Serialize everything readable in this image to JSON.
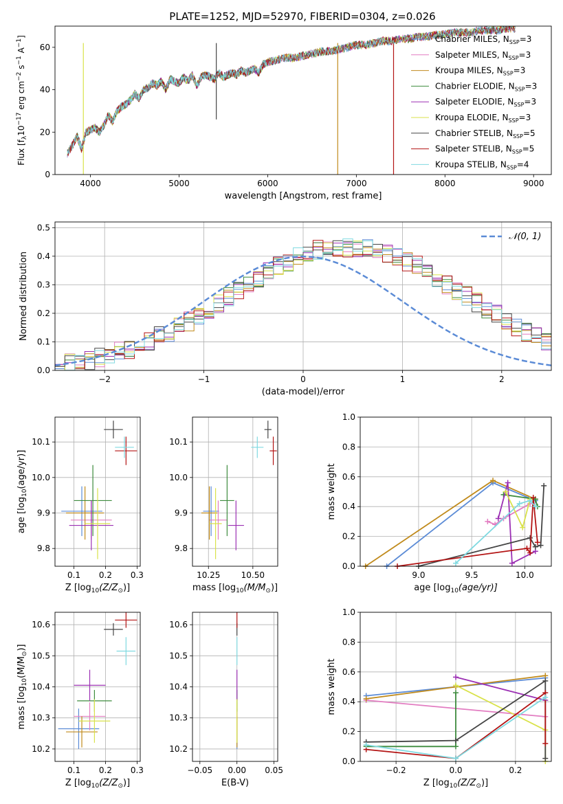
{
  "figure": {
    "title": "PLATE=1252, MJD=52970, FIBERID=0304, z=0.026"
  },
  "colors": [
    "#5b8bd6",
    "#e27cc1",
    "#c08a1b",
    "#3d8b3d",
    "#9b2fb3",
    "#d9e24a",
    "#444444",
    "#b31313",
    "#7fd9e0"
  ],
  "chart_data": [
    {
      "id": "spectrum",
      "type": "line",
      "xlabel": "wavelength [Angstrom, rest frame]",
      "ylabel_main": "Flux [f",
      "ylabel_sub": "λ",
      "ylabel_mid": "10",
      "ylabel_sup1": "−17",
      "ylabel_rest": " erg cm",
      "ylabel_sup2": "−2",
      "ylabel_rest2": " s",
      "ylabel_sup3": "−1",
      "ylabel_rest3": " A",
      "ylabel_sup4": "−1",
      "ylabel_end": "]",
      "xlim": [
        3600,
        9200
      ],
      "ylim": [
        0,
        70
      ],
      "xticks": [
        4000,
        5000,
        6000,
        7000,
        8000,
        9000
      ],
      "yticks": [
        0,
        20,
        40,
        60
      ],
      "x": [
        3740,
        3800,
        3850,
        3900,
        3950,
        4000,
        4050,
        4100,
        4150,
        4200,
        4250,
        4300,
        4350,
        4400,
        4450,
        4500,
        4550,
        4600,
        4650,
        4700,
        4750,
        4800,
        4850,
        4900,
        4950,
        5000,
        5050,
        5100,
        5150,
        5200,
        5250,
        5300,
        5350,
        5400,
        5450,
        5500,
        5550,
        5600,
        5650,
        5700,
        5750,
        5800,
        5850,
        5900,
        5950,
        6000,
        6100,
        6200,
        6300,
        6400,
        6500,
        6600,
        6700,
        6800,
        6900,
        7000,
        7100,
        7200,
        7300,
        7400,
        7500,
        7600,
        7700,
        7800,
        7900,
        8000,
        8100,
        8200,
        8300,
        8400,
        8500,
        8600,
        8700,
        8800
      ],
      "y": [
        10,
        14,
        18,
        12,
        20,
        21,
        22,
        20,
        23,
        28,
        25,
        30,
        32,
        33,
        35,
        38,
        36,
        40,
        41,
        43,
        42,
        44,
        40,
        45,
        44,
        43,
        46,
        44,
        47,
        42,
        46,
        47,
        46,
        45,
        48,
        46,
        47,
        48,
        47,
        49,
        48,
        49,
        50,
        48,
        52,
        53,
        54,
        55,
        55,
        56,
        57,
        58,
        58,
        59,
        60,
        61,
        61,
        62,
        63,
        63,
        64,
        64,
        65,
        65,
        66,
        66,
        67,
        67,
        67,
        68,
        68,
        68,
        69,
        69
      ],
      "series": [
        {
          "name_main": "Chabrier MILES, N",
          "name_sub": "SSP",
          "name_end": "=3",
          "dip": null
        },
        {
          "name_main": "Salpeter MILES, N",
          "name_sub": "SSP",
          "name_end": "=3",
          "dip": null
        },
        {
          "name_main": "Kroupa MILES, N",
          "name_sub": "SSP",
          "name_end": "=3",
          "dip": 6790
        },
        {
          "name_main": "Chabrier ELODIE, N",
          "name_sub": "SSP",
          "name_end": "=3",
          "dip": null
        },
        {
          "name_main": "Salpeter ELODIE, N",
          "name_sub": "SSP",
          "name_end": "=3",
          "dip": null
        },
        {
          "name_main": "Kroupa ELODIE, N",
          "name_sub": "SSP",
          "name_end": "=3",
          "dip": 3920
        },
        {
          "name_main": "Chabrier STELIB, N",
          "name_sub": "SSP",
          "name_end": "=5",
          "dip": 5420
        },
        {
          "name_main": "Salpeter STELIB, N",
          "name_sub": "SSP",
          "name_end": "=5",
          "dip": 7420
        },
        {
          "name_main": "Kroupa STELIB, N",
          "name_sub": "SSP",
          "name_end": "=4",
          "dip": null
        }
      ]
    },
    {
      "id": "residuals",
      "type": "histogram",
      "xlabel": "(data-model)/error",
      "ylabel": "Normed distribution",
      "xlim": [
        -2.5,
        2.5
      ],
      "ylim": [
        0,
        0.52
      ],
      "xticks": [
        -2,
        -1,
        0,
        1,
        2
      ],
      "xticklabels": [
        "−2",
        "−1",
        "0",
        "1",
        "2"
      ],
      "yticks": [
        0.0,
        0.1,
        0.2,
        0.3,
        0.4,
        0.5
      ],
      "yticklabels": [
        "0.0",
        "0.1",
        "0.2",
        "0.3",
        "0.4",
        "0.5"
      ],
      "bin_width": 0.1,
      "legend": "𝒩(0, 1)",
      "bin_edges_start": -2.5,
      "reference_values": [
        0.018,
        0.022,
        0.028,
        0.034,
        0.042,
        0.05,
        0.06,
        0.07,
        0.082,
        0.095,
        0.11,
        0.125,
        0.14,
        0.16,
        0.18,
        0.2,
        0.22,
        0.24,
        0.26,
        0.28,
        0.3,
        0.32,
        0.34,
        0.355,
        0.37,
        0.38,
        0.39,
        0.395,
        0.4,
        0.4,
        0.4,
        0.395,
        0.39,
        0.38,
        0.37,
        0.355,
        0.34,
        0.32,
        0.3,
        0.28,
        0.26,
        0.24,
        0.22,
        0.2,
        0.18,
        0.16,
        0.14,
        0.125,
        0.11,
        0.095
      ]
    },
    {
      "id": "age-vs-Z",
      "type": "scatter",
      "xlabel": "Z [log",
      "xlabel_sub": "10",
      "xlabel_end": "(Z/Z",
      "xlabel_sub2": "⊙",
      "xlabel_close": ")]",
      "ylabel": "age  [log",
      "ylabel_sub": "10",
      "ylabel_end": "(age/yr)]",
      "xlim": [
        0.04,
        0.31
      ],
      "ylim": [
        9.75,
        10.17
      ],
      "xticks": [
        0.1,
        0.2,
        0.3
      ],
      "xticklabels": [
        "0.1",
        "0.2",
        "0.3"
      ],
      "yticks": [
        9.8,
        9.9,
        10.0,
        10.1
      ],
      "yticklabels": [
        "9.8",
        "9.9",
        "10.0",
        "10.1"
      ],
      "points": [
        {
          "x": 0.125,
          "y": 9.905,
          "xerr": 0.065,
          "yerr": 0.07
        },
        {
          "x": 0.155,
          "y": 9.88,
          "xerr": 0.065,
          "yerr": 0.055
        },
        {
          "x": 0.135,
          "y": 9.9,
          "xerr": 0.06,
          "yerr": 0.075
        },
        {
          "x": 0.16,
          "y": 9.935,
          "xerr": 0.06,
          "yerr": 0.1
        },
        {
          "x": 0.155,
          "y": 9.865,
          "xerr": 0.07,
          "yerr": 0.07
        },
        {
          "x": 0.175,
          "y": 9.87,
          "xerr": 0.04,
          "yerr": 0.1
        },
        {
          "x": 0.225,
          "y": 10.135,
          "xerr": 0.03,
          "yerr": 0.025
        },
        {
          "x": 0.265,
          "y": 10.075,
          "xerr": 0.035,
          "yerr": 0.04
        },
        {
          "x": 0.26,
          "y": 10.085,
          "xerr": 0.03,
          "yerr": 0.03
        }
      ]
    },
    {
      "id": "age-vs-mass",
      "type": "scatter",
      "xlabel": "mass [log",
      "xlabel_sub": "10",
      "xlabel_end": "(M/M",
      "xlabel_sub2": "⊙",
      "xlabel_close": ")]",
      "xlim": [
        10.16,
        10.64
      ],
      "ylim": [
        9.75,
        10.17
      ],
      "xticks": [
        10.25,
        10.5
      ],
      "xticklabels": [
        "10.25",
        "10.50"
      ],
      "yticks": [
        9.8,
        9.9,
        10.0,
        10.1
      ],
      "yticklabels": [
        "9.8",
        "9.9",
        "10.0",
        "10.1"
      ],
      "points": [
        {
          "x": 10.265,
          "y": 9.905,
          "xerr": 0.045,
          "yerr": 0.07
        },
        {
          "x": 10.305,
          "y": 9.88,
          "xerr": 0.05,
          "yerr": 0.055
        },
        {
          "x": 10.255,
          "y": 9.9,
          "xerr": 0.045,
          "yerr": 0.075
        },
        {
          "x": 10.355,
          "y": 9.935,
          "xerr": 0.04,
          "yerr": 0.1
        },
        {
          "x": 10.405,
          "y": 9.865,
          "xerr": 0.045,
          "yerr": 0.07
        },
        {
          "x": 10.29,
          "y": 9.87,
          "xerr": 0.035,
          "yerr": 0.1
        },
        {
          "x": 10.585,
          "y": 10.135,
          "xerr": 0.02,
          "yerr": 0.025
        },
        {
          "x": 10.615,
          "y": 10.075,
          "xerr": 0.02,
          "yerr": 0.04
        },
        {
          "x": 10.525,
          "y": 10.085,
          "xerr": 0.035,
          "yerr": 0.03
        }
      ]
    },
    {
      "id": "mass-weight-vs-age",
      "type": "line",
      "xlabel": "age  [log",
      "xlabel_sub": "10",
      "xlabel_end": "(age/yr)]",
      "ylabel": "mass weight",
      "xlim": [
        8.45,
        10.25
      ],
      "ylim": [
        0,
        1.0
      ],
      "xticks": [
        9.0,
        9.5,
        10.0
      ],
      "xticklabels": [
        "9.0",
        "9.5",
        "10.0"
      ],
      "yticks": [
        0,
        0.2,
        0.4,
        0.6,
        0.8,
        1.0
      ],
      "yticklabels": [
        "0.0",
        "0.2",
        "0.4",
        "0.6",
        "0.8",
        "1.0"
      ],
      "series": [
        {
          "x": [
            8.7,
            9.7,
            10.1
          ],
          "y": [
            0.0,
            0.56,
            0.44
          ]
        },
        {
          "x": [
            9.65,
            9.72,
            9.8,
            10.05
          ],
          "y": [
            0.3,
            0.28,
            0.32,
            0.42
          ]
        },
        {
          "x": [
            8.5,
            9.7,
            10.1
          ],
          "y": [
            0.0,
            0.575,
            0.45
          ]
        },
        {
          "x": [
            9.8,
            10.1,
            10.12
          ],
          "y": [
            0.48,
            0.45,
            0.4
          ]
        },
        {
          "x": [
            9.75,
            9.84,
            9.88,
            10.1
          ],
          "y": [
            0.32,
            0.56,
            0.02,
            0.1
          ]
        },
        {
          "x": [
            9.82,
            9.98,
            10.05
          ],
          "y": [
            0.5,
            0.26,
            0.45
          ]
        },
        {
          "x": [
            9.0,
            10.05,
            10.1,
            10.15,
            10.18
          ],
          "y": [
            0.0,
            0.19,
            0.13,
            0.14,
            0.54
          ]
        },
        {
          "x": [
            8.8,
            10.02,
            10.05,
            10.08,
            10.12
          ],
          "y": [
            0.0,
            0.12,
            0.09,
            0.46,
            0.16
          ]
        },
        {
          "x": [
            9.35,
            9.95,
            10.05,
            10.1
          ],
          "y": [
            0.02,
            0.42,
            0.44,
            0.4
          ]
        }
      ]
    },
    {
      "id": "mass-vs-Z",
      "type": "scatter",
      "xlabel": "Z [log",
      "xlabel_sub": "10",
      "xlabel_end": "(Z/Z",
      "xlabel_sub2": "⊙",
      "xlabel_close": ")]",
      "ylabel": "mass [log",
      "ylabel_sub": "10",
      "ylabel_end": "(M/M",
      "ylabel_sub2": "⊙",
      "ylabel_close": ")]",
      "xlim": [
        0.04,
        0.31
      ],
      "ylim": [
        10.16,
        10.64
      ],
      "xticks": [
        0.1,
        0.2,
        0.3
      ],
      "xticklabels": [
        "0.1",
        "0.2",
        "0.3"
      ],
      "yticks": [
        10.2,
        10.3,
        10.4,
        10.5,
        10.6
      ],
      "yticklabels": [
        "10.2",
        "10.3",
        "10.4",
        "10.5",
        "10.6"
      ],
      "points": [
        {
          "x": 0.115,
          "y": 10.265,
          "xerr": 0.065,
          "yerr": 0.065
        },
        {
          "x": 0.15,
          "y": 10.305,
          "xerr": 0.05,
          "yerr": 0.045
        },
        {
          "x": 0.125,
          "y": 10.255,
          "xerr": 0.05,
          "yerr": 0.05
        },
        {
          "x": 0.165,
          "y": 10.355,
          "xerr": 0.055,
          "yerr": 0.035
        },
        {
          "x": 0.15,
          "y": 10.405,
          "xerr": 0.05,
          "yerr": 0.05
        },
        {
          "x": 0.165,
          "y": 10.29,
          "xerr": 0.05,
          "yerr": 0.07
        },
        {
          "x": 0.225,
          "y": 10.585,
          "xerr": 0.03,
          "yerr": 0.02
        },
        {
          "x": 0.265,
          "y": 10.615,
          "xerr": 0.035,
          "yerr": 0.025
        },
        {
          "x": 0.265,
          "y": 10.515,
          "xerr": 0.03,
          "yerr": 0.045
        }
      ]
    },
    {
      "id": "mass-vs-ebv",
      "type": "scatter",
      "xlabel": "E(B-V)",
      "xlim": [
        -0.06,
        0.055
      ],
      "ylim": [
        10.16,
        10.64
      ],
      "xticks": [
        -0.05,
        0.0,
        0.05
      ],
      "xticklabels": [
        "−0.05",
        "0.00",
        "0.05"
      ],
      "yticks": [
        10.2,
        10.3,
        10.4,
        10.5,
        10.6
      ],
      "yticklabels": [
        "10.2",
        "10.3",
        "10.4",
        "10.5",
        "10.6"
      ],
      "points": [
        {
          "x": 0.0,
          "y": 10.265,
          "xerr": 0,
          "yerr": 0.065
        },
        {
          "x": 0.0,
          "y": 10.305,
          "xerr": 0,
          "yerr": 0.045
        },
        {
          "x": 0.0,
          "y": 10.255,
          "xerr": 0,
          "yerr": 0.05
        },
        {
          "x": 0.0,
          "y": 10.355,
          "xerr": 0,
          "yerr": 0.035
        },
        {
          "x": 0.0,
          "y": 10.405,
          "xerr": 0,
          "yerr": 0.05
        },
        {
          "x": 0.0,
          "y": 10.29,
          "xerr": 0,
          "yerr": 0.07
        },
        {
          "x": 0.0,
          "y": 10.585,
          "xerr": 0,
          "yerr": 0.02
        },
        {
          "x": 0.0,
          "y": 10.615,
          "xerr": 0,
          "yerr": 0.025
        },
        {
          "x": 0.0,
          "y": 10.515,
          "xerr": 0,
          "yerr": 0.045
        }
      ]
    },
    {
      "id": "mass-weight-vs-Z",
      "type": "line",
      "xlabel": "Z [log",
      "xlabel_sub": "10",
      "xlabel_end": "(Z/Z",
      "xlabel_sub2": "⊙",
      "xlabel_close": ")]",
      "ylabel": "mass weight",
      "xlim": [
        -0.32,
        0.32
      ],
      "ylim": [
        0,
        1.0
      ],
      "xticks": [
        -0.2,
        0.0,
        0.2
      ],
      "xticklabels": [
        "−0.2",
        "0.0",
        "0.2"
      ],
      "yticks": [
        0,
        0.2,
        0.4,
        0.6,
        0.8,
        1.0
      ],
      "yticklabels": [
        "0.0",
        "0.2",
        "0.4",
        "0.6",
        "0.8",
        "1.0"
      ],
      "series": [
        {
          "x": [
            -0.3,
            0.0,
            0.3
          ],
          "y": [
            0.44,
            0.5,
            0.56
          ]
        },
        {
          "x": [
            -0.3,
            0.3
          ],
          "y": [
            0.41,
            0.3
          ]
        },
        {
          "x": [
            -0.3,
            0.0,
            0.3
          ],
          "y": [
            0.42,
            0.5,
            0.575
          ]
        },
        {
          "x": [
            -0.3,
            0.0,
            0.0
          ],
          "y": [
            0.1,
            0.1,
            0.46
          ]
        },
        {
          "x": [
            0.0,
            0.3
          ],
          "y": [
            0.565,
            0.41
          ]
        },
        {
          "x": [
            0.0,
            0.3,
            0.3
          ],
          "y": [
            0.51,
            0.21,
            0.0
          ]
        },
        {
          "x": [
            -0.3,
            0.0,
            0.3,
            0.3
          ],
          "y": [
            0.13,
            0.14,
            0.54,
            0.02
          ]
        },
        {
          "x": [
            -0.3,
            0.0,
            0.3,
            0.3
          ],
          "y": [
            0.08,
            0.02,
            0.46,
            0.12
          ]
        },
        {
          "x": [
            -0.3,
            0.0,
            0.3
          ],
          "y": [
            0.11,
            0.02,
            0.43
          ]
        }
      ]
    }
  ]
}
